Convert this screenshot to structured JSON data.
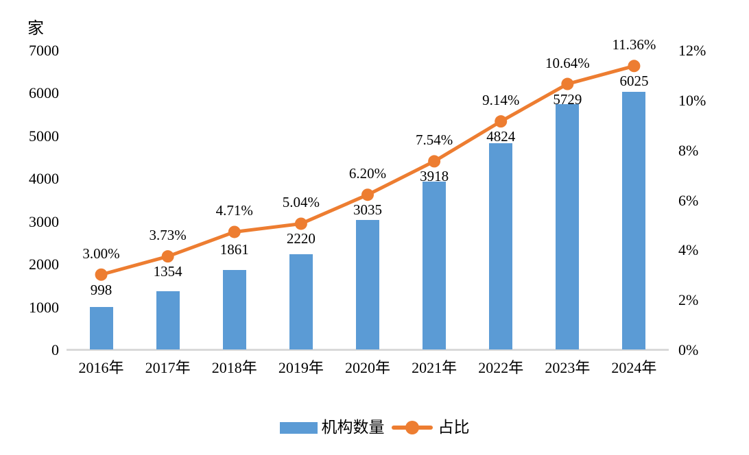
{
  "chart_data": {
    "type": "combo-bar-line",
    "title": "",
    "categories": [
      "2016年",
      "2017年",
      "2018年",
      "2019年",
      "2020年",
      "2021年",
      "2022年",
      "2023年",
      "2024年"
    ],
    "series": [
      {
        "name": "机构数量",
        "type": "bar",
        "axis": "left",
        "color": "#5B9BD5",
        "values": [
          998,
          1354,
          1861,
          2220,
          3035,
          3918,
          4824,
          5729,
          6025
        ],
        "data_labels": [
          "998",
          "1354",
          "1861",
          "2220",
          "3035",
          "3918",
          "4824",
          "5729",
          "6025"
        ]
      },
      {
        "name": "占比",
        "type": "line",
        "axis": "right",
        "color": "#ED7D31",
        "values": [
          3.0,
          3.73,
          4.71,
          5.04,
          6.2,
          7.54,
          9.14,
          10.64,
          11.36
        ],
        "data_labels": [
          "3.00%",
          "3.73%",
          "4.71%",
          "5.04%",
          "6.20%",
          "7.54%",
          "9.14%",
          "10.64%",
          "11.36%"
        ]
      }
    ],
    "left_axis": {
      "title": "家",
      "min": 0,
      "max": 7000,
      "step": 1000,
      "ticks": [
        "0",
        "1000",
        "2000",
        "3000",
        "4000",
        "5000",
        "6000",
        "7000"
      ]
    },
    "right_axis": {
      "min": 0,
      "max": 12,
      "step": 2,
      "ticks": [
        "0%",
        "2%",
        "4%",
        "6%",
        "8%",
        "10%",
        "12%"
      ]
    },
    "legend": {
      "position": "bottom",
      "entries": [
        "机构数量",
        "占比"
      ]
    },
    "grid": "off",
    "colors": {
      "bar": "#5B9BD5",
      "line": "#ED7D31",
      "axis_line": "#D9D9D9",
      "text": "#000000",
      "background": "#FFFFFF"
    }
  }
}
